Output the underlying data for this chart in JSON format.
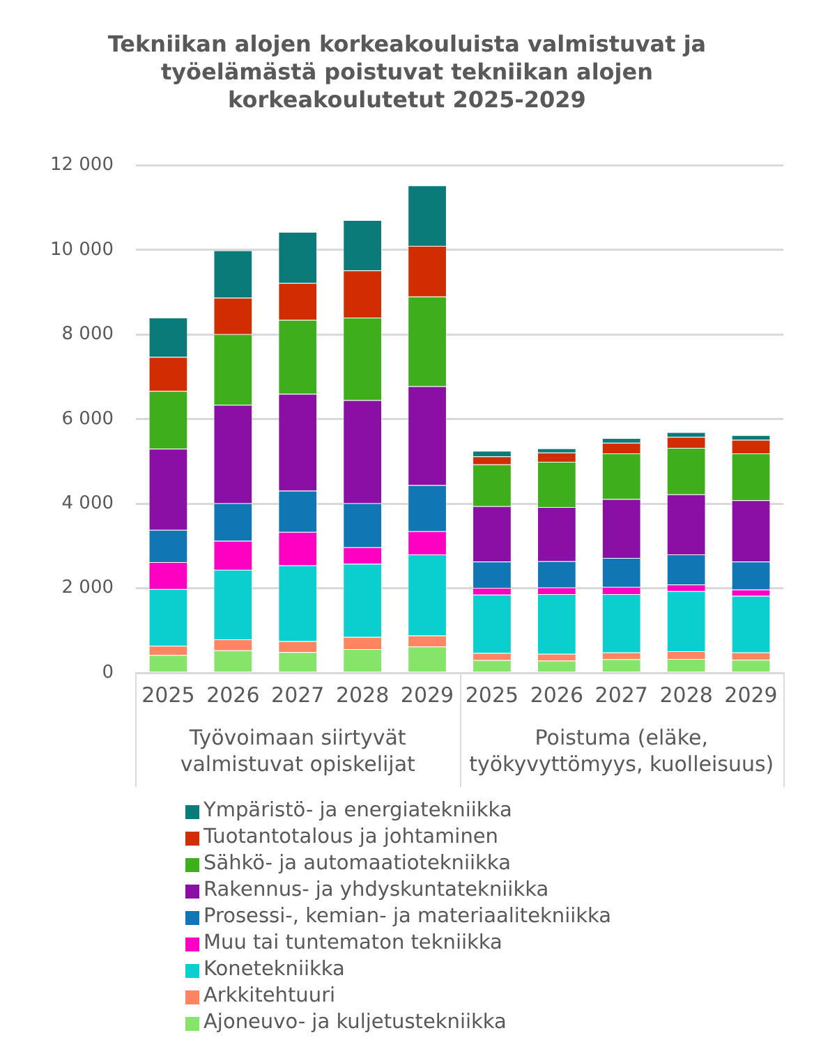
{
  "chart_data": {
    "type": "bar",
    "stacked": true,
    "title": "Tekniikan alojen korkeakouluista valmistuvat ja työelämästä poistuvat tekniikan alojen korkeakoulutetut 2025-2029",
    "categories": [
      "2025",
      "2026",
      "2027",
      "2028",
      "2029",
      "2025",
      "2026",
      "2027",
      "2028",
      "2029"
    ],
    "annotations": [
      "Työvoimaan siirtyvät valmistuvat opiskelijat",
      "Poistuma (eläke, työkyvyttömyys, kuolleisuus)"
    ],
    "ylim": [
      0,
      12000
    ],
    "yticks": [
      {
        "value": 0,
        "label": "0"
      },
      {
        "value": 2000,
        "label": "2 000"
      },
      {
        "value": 4000,
        "label": "4 000"
      },
      {
        "value": 6000,
        "label": "6 000"
      },
      {
        "value": 8000,
        "label": "8 000"
      },
      {
        "value": 10000,
        "label": "10 000"
      },
      {
        "value": 12000,
        "label": "12 000"
      }
    ],
    "grid": "y",
    "legend": "bottom",
    "series": [
      {
        "name": "Ajoneuvo- ja kuljetustekniikka",
        "color": "#86e46b",
        "values": [
          420,
          530,
          490,
          560,
          620,
          300,
          290,
          320,
          330,
          310
        ]
      },
      {
        "name": "Arkkitehtuuri",
        "color": "#ff8462",
        "values": [
          220,
          260,
          260,
          290,
          260,
          170,
          160,
          160,
          180,
          170
        ]
      },
      {
        "name": "Konetekniikka",
        "color": "#0bcfcf",
        "values": [
          1340,
          1650,
          1790,
          1730,
          1920,
          1380,
          1410,
          1380,
          1420,
          1340
        ]
      },
      {
        "name": "Muu tai tuntematon tekniikka",
        "color": "#ff00c3",
        "values": [
          640,
          680,
          790,
          390,
          550,
          160,
          160,
          170,
          160,
          150
        ]
      },
      {
        "name": "Prosessi-, kemian- ja materiaalitekniikka",
        "color": "#1176b4",
        "values": [
          760,
          890,
          980,
          1040,
          1090,
          620,
          620,
          690,
          710,
          660
        ]
      },
      {
        "name": "Rakennus- ja yhdyskuntatekniikka",
        "color": "#8a0fa5",
        "values": [
          1920,
          2330,
          2290,
          2440,
          2340,
          1310,
          1280,
          1390,
          1420,
          1450
        ]
      },
      {
        "name": "Sähkö- ja automaatiotekniikka",
        "color": "#3fae1c",
        "values": [
          1370,
          1670,
          1750,
          1950,
          2120,
          990,
          1070,
          1080,
          1100,
          1110
        ]
      },
      {
        "name": "Tuotantotalous ja johtaminen",
        "color": "#d12e00",
        "values": [
          800,
          860,
          870,
          1120,
          1200,
          190,
          220,
          250,
          260,
          320
        ]
      },
      {
        "name": "Ympäristö- ja energiatekniikka",
        "color": "#0b7b7a",
        "values": [
          930,
          1120,
          1210,
          1190,
          1430,
          130,
          100,
          110,
          110,
          110
        ]
      }
    ]
  }
}
